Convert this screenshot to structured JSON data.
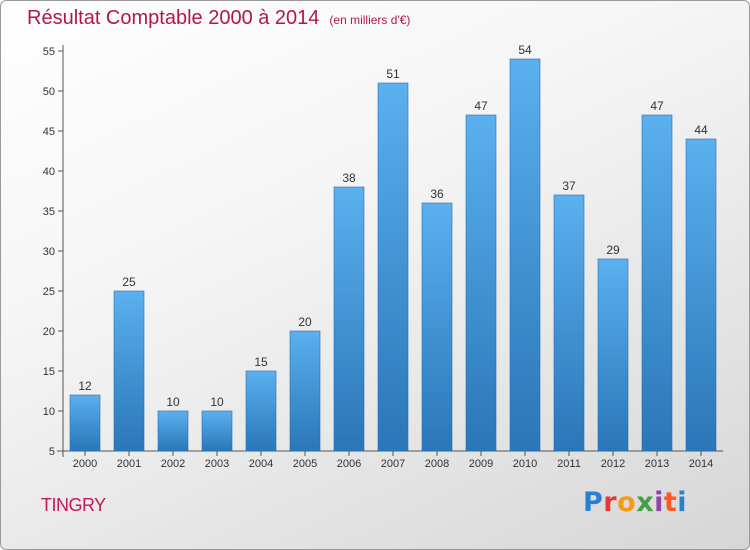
{
  "colors": {
    "bar_top": "#5bb0ef",
    "bar_bottom": "#2a76b8",
    "title": "#b3164f",
    "commune": "#c2185b",
    "logo": [
      "#2b7fd0",
      "#e53935",
      "#f39c12",
      "#43a047",
      "#8e44ad",
      "#ff5722"
    ]
  },
  "commune": "TINGRY",
  "logo_text": "Proxiti",
  "chart_data": {
    "type": "bar",
    "title": "Résultat Comptable 2000 à 2014",
    "subtitle": "(en milliers d'€)",
    "xlabel": "",
    "ylabel": "",
    "categories": [
      "2000",
      "2001",
      "2002",
      "2003",
      "2004",
      "2005",
      "2006",
      "2007",
      "2008",
      "2009",
      "2010",
      "2011",
      "2012",
      "2013",
      "2014"
    ],
    "values": [
      12,
      25,
      10,
      10,
      15,
      20,
      38,
      51,
      36,
      47,
      54,
      37,
      29,
      47,
      44
    ],
    "ylim": [
      5,
      55
    ],
    "yticks": [
      5,
      10,
      15,
      20,
      25,
      30,
      35,
      40,
      45,
      50,
      55
    ],
    "grid": false,
    "data_labels": true
  }
}
